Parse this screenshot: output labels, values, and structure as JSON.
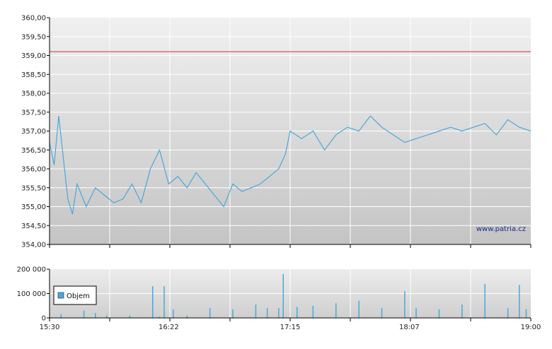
{
  "watermark": "www.patria.cz",
  "colors": {
    "price_line": "#4aa8d8",
    "reference_line": "#cc3333",
    "volume_bar": "#4aa8d8",
    "grid": "#ffffff",
    "axis": "#000000"
  },
  "chart_data": [
    {
      "type": "line",
      "title": "",
      "xlabel": "",
      "ylabel": "",
      "ylim": [
        354.0,
        360.0
      ],
      "y_ticks": [
        "360,00",
        "359,50",
        "359,00",
        "358,50",
        "358,00",
        "357,50",
        "357,00",
        "356,50",
        "356,00",
        "355,50",
        "355,00",
        "354,50",
        "354,00"
      ],
      "x_ticks": [
        "15:30",
        "16:22",
        "17:15",
        "18:07",
        "19:00"
      ],
      "reference_line": 359.1,
      "grid": true,
      "series": [
        {
          "x": [
            "15:30",
            "15:32",
            "15:34",
            "15:36",
            "15:38",
            "15:40",
            "15:42",
            "15:44",
            "15:46",
            "15:50",
            "15:54",
            "15:58",
            "16:02",
            "16:06",
            "16:10",
            "16:14",
            "16:18",
            "16:22",
            "16:26",
            "16:30",
            "16:34",
            "16:38",
            "16:42",
            "16:46",
            "16:50",
            "16:54",
            "16:58",
            "17:02",
            "17:06",
            "17:10",
            "17:13",
            "17:15",
            "17:20",
            "17:25",
            "17:30",
            "17:35",
            "17:40",
            "17:45",
            "17:50",
            "17:55",
            "18:00",
            "18:05",
            "18:10",
            "18:15",
            "18:20",
            "18:25",
            "18:30",
            "18:35",
            "18:40",
            "18:45",
            "18:50",
            "18:55",
            "19:00"
          ],
          "values": [
            356.7,
            356.1,
            357.4,
            356.3,
            355.2,
            354.8,
            355.6,
            355.3,
            355.0,
            355.5,
            355.3,
            355.1,
            355.2,
            355.6,
            355.1,
            356.0,
            356.5,
            355.6,
            355.8,
            355.5,
            355.9,
            355.6,
            355.3,
            355.0,
            355.6,
            355.4,
            355.5,
            355.6,
            355.8,
            356.0,
            356.4,
            357.0,
            356.8,
            357.0,
            356.5,
            356.9,
            357.1,
            357.0,
            357.4,
            357.1,
            356.9,
            356.7,
            356.8,
            356.9,
            357.0,
            357.1,
            357.0,
            357.1,
            357.2,
            356.9,
            357.3,
            357.1,
            357.0
          ]
        }
      ]
    },
    {
      "type": "bar",
      "title": "",
      "ylim": [
        0,
        200000
      ],
      "y_ticks": [
        "200 000",
        "100 000",
        "0"
      ],
      "x_ticks": [
        "15:30",
        "16:22",
        "17:15",
        "18:07",
        "19:00"
      ],
      "grid": true,
      "legend": {
        "placement": "left",
        "entries": [
          "Objem"
        ]
      },
      "series": [
        {
          "name": "Objem",
          "x": [
            "15:35",
            "15:45",
            "15:50",
            "15:55",
            "16:05",
            "16:15",
            "16:18",
            "16:20",
            "16:24",
            "16:30",
            "16:40",
            "16:50",
            "17:00",
            "17:05",
            "17:10",
            "17:12",
            "17:18",
            "17:25",
            "17:35",
            "17:45",
            "17:55",
            "18:05",
            "18:10",
            "18:20",
            "18:30",
            "18:40",
            "18:50",
            "18:55",
            "18:58"
          ],
          "values": [
            15000,
            30000,
            20000,
            10000,
            10000,
            130000,
            5000,
            130000,
            35000,
            10000,
            40000,
            35000,
            55000,
            40000,
            40000,
            180000,
            45000,
            50000,
            60000,
            70000,
            40000,
            110000,
            40000,
            35000,
            55000,
            140000,
            40000,
            135000,
            35000
          ]
        }
      ]
    }
  ]
}
